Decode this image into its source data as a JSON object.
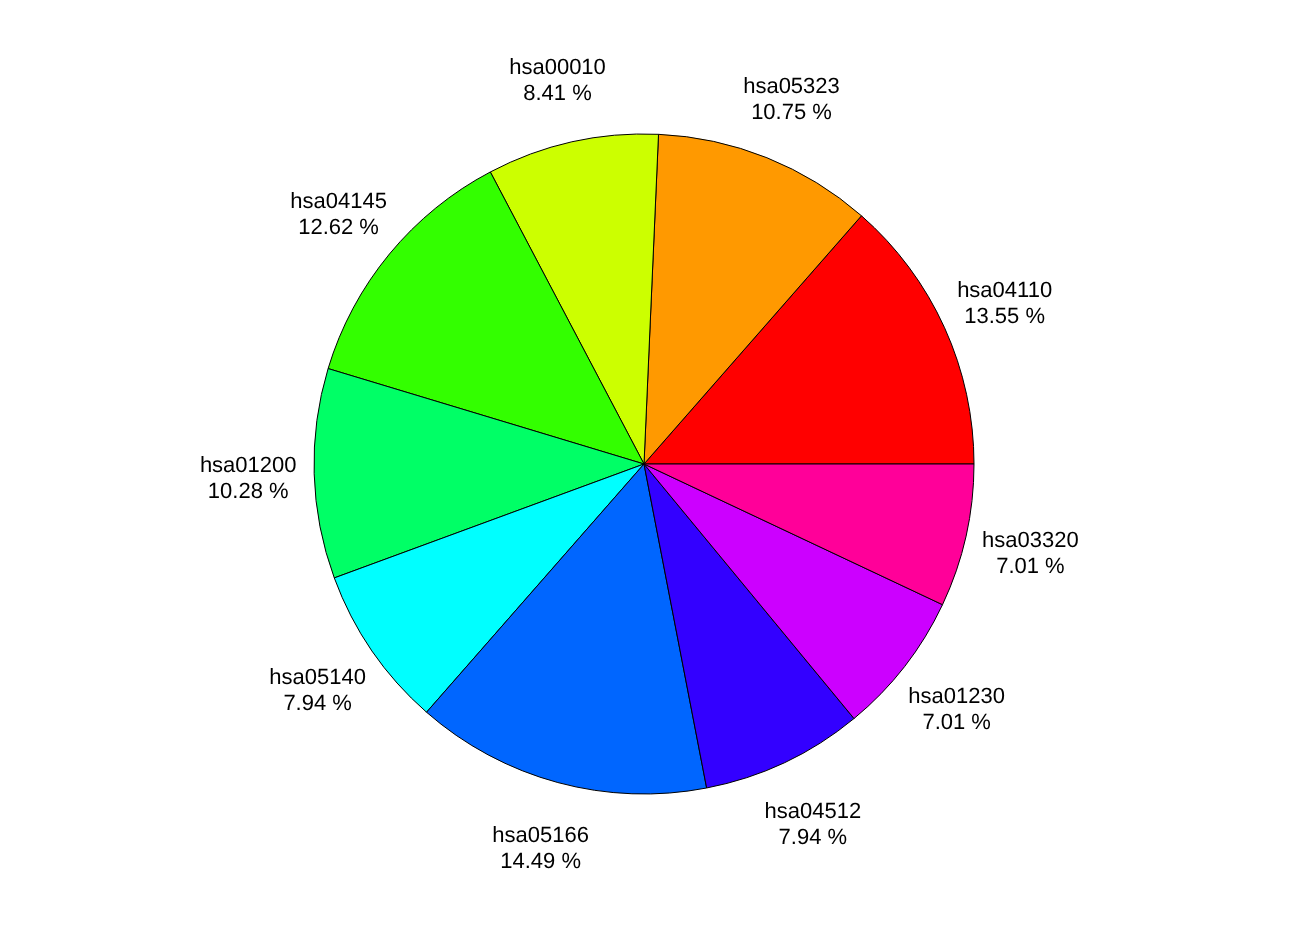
{
  "chart_data": {
    "type": "pie",
    "categories": [
      "hsa04110",
      "hsa05323",
      "hsa00010",
      "hsa04145",
      "hsa01200",
      "hsa05140",
      "hsa05166",
      "hsa04512",
      "hsa01230",
      "hsa03320"
    ],
    "values": [
      13.55,
      10.75,
      8.41,
      12.62,
      10.28,
      7.94,
      14.49,
      7.94,
      7.01,
      7.01
    ],
    "value_labels": [
      "13.55 %",
      "10.75 %",
      "8.41 %",
      "12.62 %",
      "10.28 %",
      "7.94 %",
      "14.49 %",
      "7.94 %",
      "7.01 %",
      "7.01 %"
    ],
    "colors": [
      "#ff0000",
      "#ff9900",
      "#ccff00",
      "#33ff00",
      "#00ff66",
      "#00ffff",
      "#0066ff",
      "#3300ff",
      "#cc00ff",
      "#ff0099"
    ]
  }
}
